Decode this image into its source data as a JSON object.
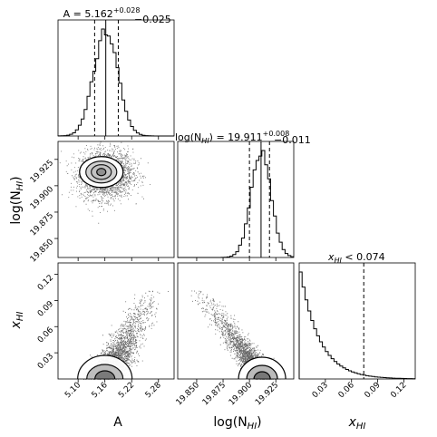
{
  "chart_data": {
    "type": "corner",
    "parameters": [
      {
        "key": "A",
        "label": "A",
        "ylabel": ""
      },
      {
        "key": "logNHI",
        "label": "log(N",
        "sub": "HI",
        "suffix": ")"
      },
      {
        "key": "xHI",
        "label": "x",
        "sub": "HI",
        "suffix": ""
      }
    ],
    "panel_titles": {
      "A": {
        "text": "A = 5.162",
        "sup": "+0.028",
        "sub": "−0.025"
      },
      "logNHI": {
        "text": "log(N",
        "textsub": "HI",
        "text2": ") = 19.911",
        "sup": "+0.008",
        "sub": "−0.011"
      },
      "xHI": {
        "text": "x",
        "textsub": "HI",
        "text2": " < 0.074"
      }
    },
    "ranges": {
      "A": [
        5.055,
        5.315
      ],
      "logNHI": [
        19.832,
        19.942
      ],
      "xHI": [
        0.0,
        0.133
      ]
    },
    "ticks": {
      "A": [
        "5.10",
        "5.16",
        "5.22",
        "5.28"
      ],
      "logNHI": [
        "19.850",
        "19.875",
        "19.900",
        "19.925"
      ],
      "xHI": [
        "0.03",
        "0.06",
        "0.09",
        "0.12"
      ]
    },
    "tick_values": {
      "A": [
        5.1,
        5.16,
        5.22,
        5.28
      ],
      "logNHI": [
        19.85,
        19.875,
        19.9,
        19.925
      ],
      "xHI": [
        0.03,
        0.06,
        0.09,
        0.12
      ]
    },
    "marginals": {
      "A": {
        "median": 5.162,
        "lower": 5.137,
        "upper": 5.19,
        "sigma": 0.027
      },
      "logNHI": {
        "median": 19.911,
        "lower": 19.9,
        "upper": 19.919,
        "sigma": 0.0095
      },
      "xHI": {
        "upper_limit": 0.074,
        "decay": 0.022
      }
    },
    "grid": false
  }
}
